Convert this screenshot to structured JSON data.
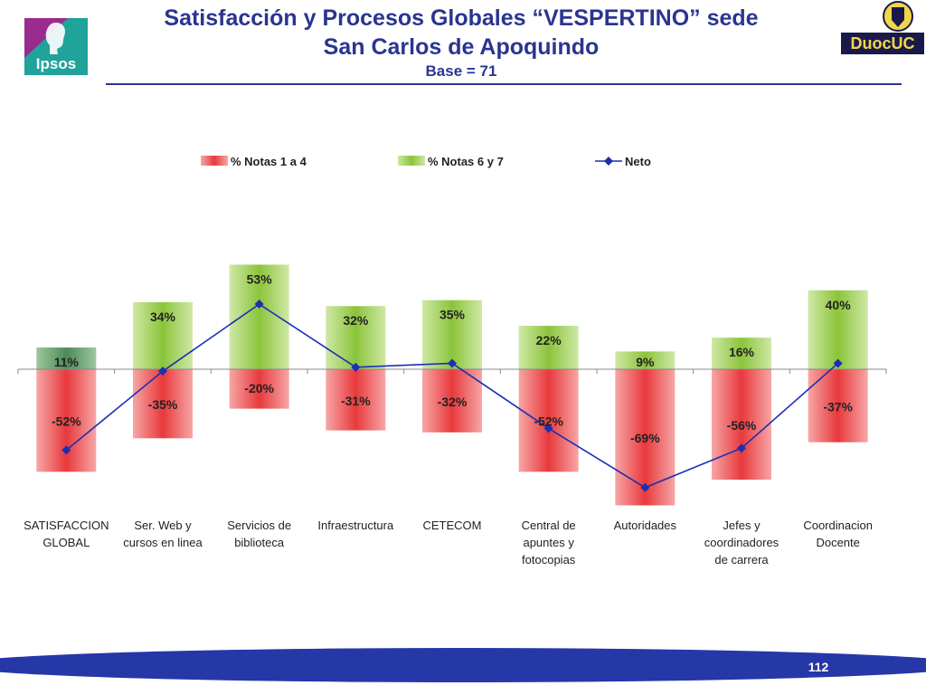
{
  "header": {
    "title_line1": "Satisfacción y Procesos Globales “VESPERTINO” sede",
    "title_line2": "San Carlos de Apoquindo",
    "base_label": "Base = 71"
  },
  "logos": {
    "left_text": "Ipsos",
    "right_text": "DuocUC"
  },
  "footer": {
    "page_number": "112"
  },
  "colors": {
    "title": "#2a3590",
    "negative_bar": "#e8393c",
    "positive_bar": "#8bc43a",
    "highlight_bar": "#4f8a5a",
    "net_line": "#1b2fb3",
    "footer_band": "#2637a8"
  },
  "chart_data": {
    "type": "bar",
    "categories": [
      [
        "SATISFACCION",
        "GLOBAL"
      ],
      [
        "Ser. Web y",
        "cursos en linea"
      ],
      [
        "Servicios de",
        "biblioteca"
      ],
      [
        "Infraestructura"
      ],
      [
        "CETECOM"
      ],
      [
        "Central de",
        "apuntes y",
        "fotocopias"
      ],
      [
        "Autoridades"
      ],
      [
        "Jefes y",
        "coordinadores",
        "de carrera"
      ],
      [
        "Coordinacion",
        "Docente"
      ]
    ],
    "series": [
      {
        "name": "% Notas 1 a  4",
        "values": [
          -52,
          -35,
          -20,
          -31,
          -32,
          -52,
          -69,
          -56,
          -37
        ],
        "labels": [
          "-52%",
          "-35%",
          "-20%",
          "-31%",
          "-32%",
          "-52%",
          "-69%",
          "-56%",
          "-37%"
        ]
      },
      {
        "name": "% Notas 6 y 7",
        "values": [
          11,
          34,
          53,
          32,
          35,
          22,
          9,
          16,
          40
        ],
        "labels": [
          "11%",
          "34%",
          "53%",
          "32%",
          "35%",
          "22%",
          "9%",
          "16%",
          "40%"
        ]
      },
      {
        "name": "Neto",
        "values": [
          -41,
          -1,
          33,
          1,
          3,
          -30,
          -60,
          -40,
          3
        ]
      }
    ],
    "ylim": [
      -75,
      60
    ],
    "grid": false,
    "legend_position": "top"
  }
}
